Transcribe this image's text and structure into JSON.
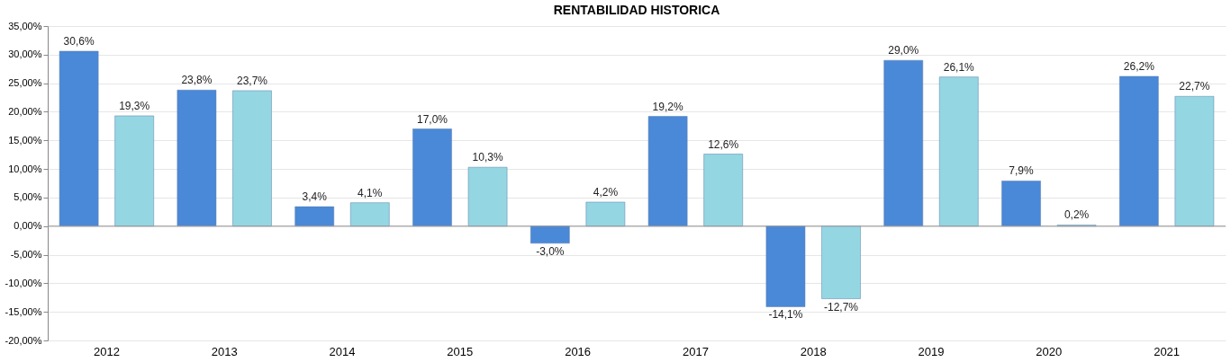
{
  "chart_data": {
    "type": "bar",
    "title": "RENTABILIDAD HISTORICA",
    "categories": [
      "2012",
      "2013",
      "2014",
      "2015",
      "2016",
      "2017",
      "2018",
      "2019",
      "2020",
      "2021"
    ],
    "series": [
      {
        "color": "#4a88d8",
        "values": [
          30.6,
          23.8,
          3.4,
          17.0,
          -3.0,
          19.2,
          -14.1,
          29.0,
          7.9,
          26.2
        ],
        "value_labels": [
          "30,6%",
          "23,8%",
          "3,4%",
          "17,0%",
          "-3,0%",
          "19,2%",
          "-14,1%",
          "29,0%",
          "7,9%",
          "26,2%"
        ]
      },
      {
        "color": "#94d6e2",
        "values": [
          19.3,
          23.7,
          4.1,
          10.3,
          4.2,
          12.6,
          -12.7,
          26.1,
          0.2,
          22.7
        ],
        "value_labels": [
          "19,3%",
          "23,7%",
          "4,1%",
          "10,3%",
          "4,2%",
          "12,6%",
          "-12,7%",
          "26,1%",
          "0,2%",
          "22,7%"
        ]
      }
    ],
    "ylim": [
      -20,
      35
    ],
    "yticks": [
      {
        "value": -20,
        "label": "-20,00%"
      },
      {
        "value": -15,
        "label": "-15,00%"
      },
      {
        "value": -10,
        "label": "-10,00%"
      },
      {
        "value": -5,
        "label": "-5,00%"
      },
      {
        "value": 0,
        "label": "0,00%"
      },
      {
        "value": 5,
        "label": "5,00%"
      },
      {
        "value": 10,
        "label": "10,00%"
      },
      {
        "value": 15,
        "label": "15,00%"
      },
      {
        "value": 20,
        "label": "20,00%"
      },
      {
        "value": 25,
        "label": "25,00%"
      },
      {
        "value": 30,
        "label": "30,00%"
      },
      {
        "value": 35,
        "label": "35,00%"
      }
    ],
    "grid": "y",
    "legend": false
  }
}
